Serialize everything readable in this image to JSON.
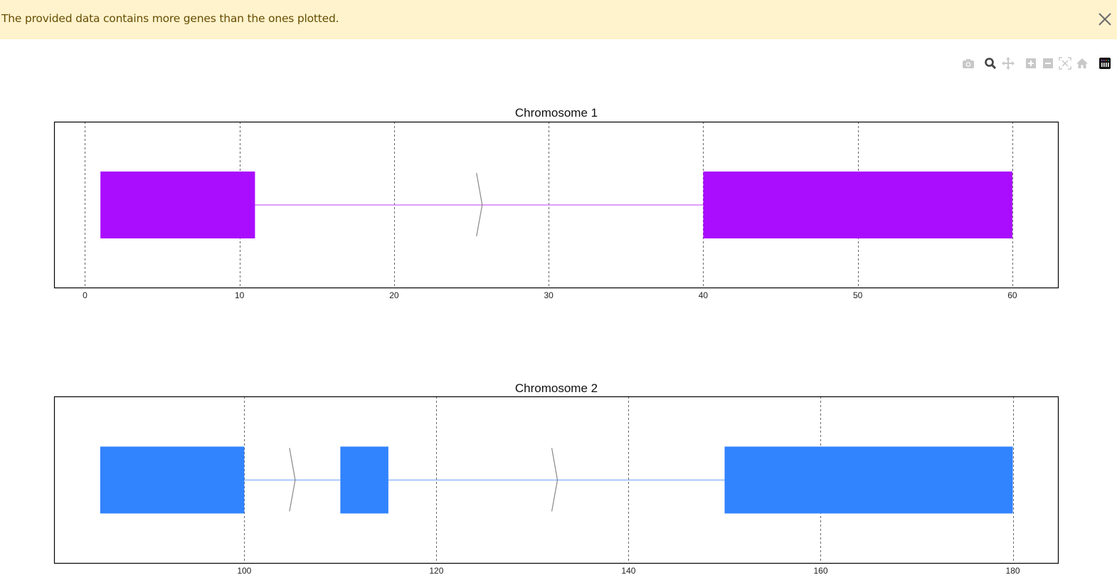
{
  "alert": {
    "message": "The provided data contains more genes than the ones plotted.",
    "close_icon": "close-x-icon",
    "background": "#fff3cd",
    "text_color": "#664d03"
  },
  "modebar": {
    "buttons": [
      {
        "name": "download-plot-as-png",
        "icon": "camera-icon",
        "active": false
      },
      {
        "name": "zoom",
        "icon": "magnifier-icon",
        "active": true
      },
      {
        "name": "pan",
        "icon": "move-arrows-icon",
        "active": false
      },
      {
        "name": "zoom-in",
        "icon": "plus-square-icon",
        "active": false
      },
      {
        "name": "zoom-out",
        "icon": "minus-square-icon",
        "active": false
      },
      {
        "name": "autoscale",
        "icon": "autoscale-icon",
        "active": false
      },
      {
        "name": "reset-axes",
        "icon": "home-icon",
        "active": false
      },
      {
        "name": "produced-with-plotly",
        "icon": "plotly-logo-icon",
        "active": false
      }
    ]
  },
  "chart_data": [
    {
      "type": "gene-structure",
      "title": "Chromosome 1",
      "xlabel": "",
      "ylabel": "",
      "xlim": [
        -2,
        62.95
      ],
      "x_ticks": [
        0,
        10,
        20,
        30,
        40,
        50,
        60
      ],
      "grid": "vertical-dashed",
      "color": "#aa0dfe",
      "intron_color": "#cc66ff",
      "exons": [
        {
          "start": 1,
          "end": 11
        },
        {
          "start": 40,
          "end": 60
        }
      ],
      "introns": [
        {
          "start": 11,
          "end": 40
        }
      ],
      "strand_arrows": [
        {
          "x": 25.7,
          "direction": "+"
        }
      ]
    },
    {
      "type": "gene-structure",
      "title": "Chromosome 2",
      "xlabel": "",
      "ylabel": "",
      "xlim": [
        80.2,
        184.7
      ],
      "x_ticks": [
        100,
        120,
        140,
        160,
        180
      ],
      "grid": "vertical-dashed",
      "color": "#3283fe",
      "intron_color": "#80b0ff",
      "exons": [
        {
          "start": 85,
          "end": 100
        },
        {
          "start": 110,
          "end": 115
        },
        {
          "start": 150,
          "end": 180
        }
      ],
      "introns": [
        {
          "start": 100,
          "end": 110
        },
        {
          "start": 115,
          "end": 150
        }
      ],
      "strand_arrows": [
        {
          "x": 105.3,
          "direction": "+"
        },
        {
          "x": 132.6,
          "direction": "+"
        }
      ]
    }
  ]
}
